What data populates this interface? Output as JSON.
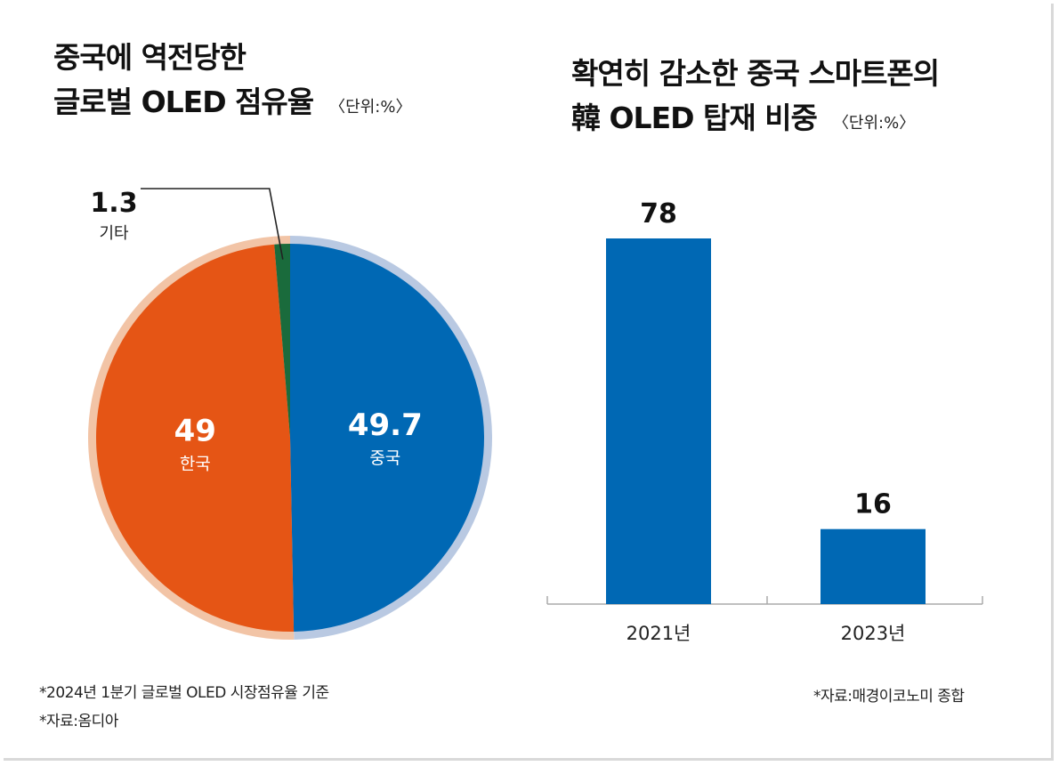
{
  "left": {
    "title_line1": "중국에 역전당한",
    "title_line2": "글로벌 OLED 점유율",
    "unit": "〈단위:%〉",
    "footnote1": "*2024년 1분기 글로벌 OLED 시장점유율 기준",
    "footnote2": "*자료:옴디아"
  },
  "right": {
    "title_line1": "확연히 감소한 중국 스마트폰의",
    "title_line2": "韓 OLED 탑재 비중",
    "unit": "〈단위:%〉",
    "source": "*자료:매경이코노미 종합"
  },
  "chart_data": [
    {
      "type": "pie",
      "slices": [
        {
          "label": "중국",
          "value": 49.7,
          "value_label": "49.7",
          "color": "#0068b4",
          "ring_color": "#b9c9e2"
        },
        {
          "label": "한국",
          "value": 49,
          "value_label": "49",
          "color": "#e55515",
          "ring_color": "#f2c4a6"
        },
        {
          "label": "기타",
          "value": 1.3,
          "value_label": "1.3",
          "color": "#1a6b3c",
          "ring_color": "#f2c4a6"
        }
      ]
    },
    {
      "type": "bar",
      "categories": [
        "2021년",
        "2023년"
      ],
      "values": [
        78,
        16
      ],
      "value_labels": [
        "78",
        "16"
      ],
      "color": "#0068b4",
      "ylim": [
        0,
        100
      ]
    }
  ]
}
